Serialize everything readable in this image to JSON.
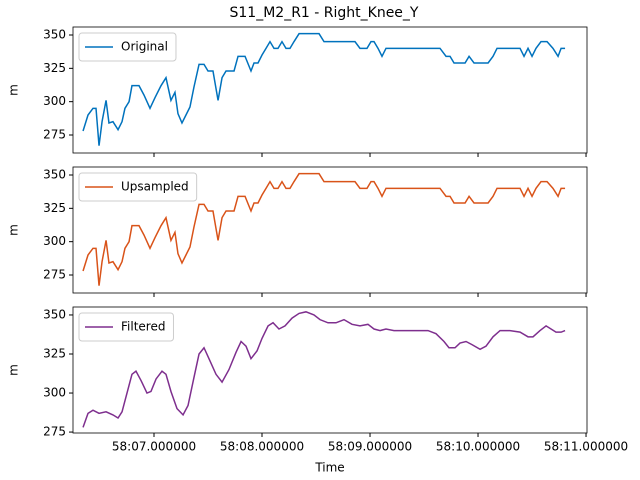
{
  "title": "S11_M2_R1 - Right_Knee_Y",
  "chart_data": [
    {
      "type": "line",
      "ylabel": "m",
      "legend": "upper left",
      "xlim": [
        6.25,
        11.009
      ],
      "ylim": [
        261.5,
        356
      ],
      "xticks": [
        7,
        8,
        9,
        10,
        11
      ],
      "yticks": [
        275,
        300,
        325,
        350
      ],
      "x": [
        6.343,
        6.389,
        6.435,
        6.463,
        6.491,
        6.519,
        6.556,
        6.583,
        6.62,
        6.667,
        6.704,
        6.731,
        6.769,
        6.796,
        6.861,
        6.907,
        6.963,
        7.009,
        7.065,
        7.111,
        7.157,
        7.194,
        7.222,
        7.259,
        7.296,
        7.333,
        7.37,
        7.417,
        7.463,
        7.5,
        7.546,
        7.593,
        7.63,
        7.667,
        7.741,
        7.778,
        7.843,
        7.898,
        7.926,
        7.963,
        8.0,
        8.037,
        8.074,
        8.111,
        8.148,
        8.185,
        8.222,
        8.259,
        8.296,
        8.343,
        8.528,
        8.574,
        8.861,
        8.907,
        8.972,
        9.009,
        9.037,
        9.074,
        9.111,
        9.148,
        9.648,
        9.704,
        9.741,
        9.778,
        9.88,
        9.917,
        9.963,
        10.093,
        10.139,
        10.176,
        10.389,
        10.426,
        10.463,
        10.5,
        10.537,
        10.583,
        10.639,
        10.694,
        10.741,
        10.769,
        10.806
      ],
      "series": [
        {
          "name": "Original",
          "color": "#0072bd",
          "values": [
            278,
            290,
            295,
            295,
            267,
            285,
            301,
            284,
            285,
            279,
            285,
            295,
            300,
            312,
            312,
            305,
            295,
            303,
            312,
            318,
            301,
            307,
            291,
            284,
            290,
            296,
            311,
            328,
            328,
            323,
            323,
            301,
            318,
            323,
            323,
            334,
            334,
            323,
            329,
            329,
            335,
            340,
            345,
            340,
            340,
            345,
            340,
            340,
            345,
            351,
            351,
            345,
            345,
            340,
            340,
            345,
            345,
            340,
            334,
            340,
            340,
            334,
            334,
            329,
            329,
            334,
            329,
            329,
            334,
            340,
            340,
            334,
            340,
            334,
            340,
            345,
            345,
            340,
            334,
            340,
            340
          ]
        }
      ]
    },
    {
      "type": "line",
      "ylabel": "m",
      "legend": "upper left",
      "xlim": [
        6.25,
        11.009
      ],
      "ylim": [
        261.5,
        356
      ],
      "xticks": [
        7,
        8,
        9,
        10,
        11
      ],
      "yticks": [
        275,
        300,
        325,
        350
      ],
      "x": [
        6.343,
        6.389,
        6.435,
        6.463,
        6.491,
        6.519,
        6.556,
        6.583,
        6.62,
        6.667,
        6.704,
        6.731,
        6.769,
        6.796,
        6.861,
        6.907,
        6.963,
        7.009,
        7.065,
        7.111,
        7.157,
        7.194,
        7.222,
        7.259,
        7.296,
        7.333,
        7.37,
        7.417,
        7.463,
        7.5,
        7.546,
        7.593,
        7.63,
        7.667,
        7.741,
        7.778,
        7.843,
        7.898,
        7.926,
        7.963,
        8.0,
        8.037,
        8.074,
        8.111,
        8.148,
        8.185,
        8.222,
        8.259,
        8.296,
        8.343,
        8.528,
        8.574,
        8.861,
        8.907,
        8.972,
        9.009,
        9.037,
        9.074,
        9.111,
        9.148,
        9.648,
        9.704,
        9.741,
        9.778,
        9.88,
        9.917,
        9.963,
        10.093,
        10.139,
        10.176,
        10.389,
        10.426,
        10.463,
        10.5,
        10.537,
        10.583,
        10.639,
        10.694,
        10.741,
        10.769,
        10.806
      ],
      "series": [
        {
          "name": "Upsampled",
          "color": "#d95319",
          "values": [
            278,
            290,
            295,
            295,
            267,
            285,
            301,
            284,
            285,
            279,
            285,
            295,
            300,
            312,
            312,
            305,
            295,
            303,
            312,
            318,
            301,
            307,
            291,
            284,
            290,
            296,
            311,
            328,
            328,
            323,
            323,
            301,
            318,
            323,
            323,
            334,
            334,
            323,
            329,
            329,
            335,
            340,
            345,
            340,
            340,
            345,
            340,
            340,
            345,
            351,
            351,
            345,
            345,
            340,
            340,
            345,
            345,
            340,
            334,
            340,
            340,
            334,
            334,
            329,
            329,
            334,
            329,
            329,
            334,
            340,
            340,
            334,
            340,
            334,
            340,
            345,
            345,
            340,
            334,
            340,
            340
          ]
        }
      ]
    },
    {
      "type": "line",
      "ylabel": "m",
      "xlabel": "Time",
      "legend": "upper left",
      "xlim": [
        6.25,
        11.009
      ],
      "ylim": [
        274.4,
        355.1
      ],
      "xticks": [
        {
          "value": 7,
          "label": "58:07.000000"
        },
        {
          "value": 8,
          "label": "58:08.000000"
        },
        {
          "value": 9,
          "label": "58:09.000000"
        },
        {
          "value": 10,
          "label": "58:10.000000"
        },
        {
          "value": 11,
          "label": "58:11.000000"
        }
      ],
      "yticks": [
        275,
        300,
        325,
        350
      ],
      "x": [
        6.343,
        6.389,
        6.435,
        6.491,
        6.556,
        6.62,
        6.667,
        6.704,
        6.75,
        6.796,
        6.833,
        6.88,
        6.935,
        6.972,
        7.019,
        7.074,
        7.111,
        7.157,
        7.213,
        7.269,
        7.315,
        7.37,
        7.417,
        7.463,
        7.509,
        7.574,
        7.63,
        7.694,
        7.759,
        7.806,
        7.852,
        7.898,
        7.954,
        8.0,
        8.056,
        8.102,
        8.157,
        8.213,
        8.278,
        8.343,
        8.407,
        8.481,
        8.537,
        8.611,
        8.685,
        8.759,
        8.833,
        8.907,
        8.981,
        9.037,
        9.093,
        9.148,
        9.222,
        9.315,
        9.389,
        9.463,
        9.537,
        9.611,
        9.685,
        9.731,
        9.787,
        9.833,
        9.889,
        9.944,
        10.019,
        10.074,
        10.139,
        10.204,
        10.296,
        10.389,
        10.463,
        10.509,
        10.574,
        10.63,
        10.676,
        10.722,
        10.769,
        10.806
      ],
      "series": [
        {
          "name": "Filtered",
          "color": "#7e2f8e",
          "values": [
            278,
            287,
            289,
            287,
            288,
            286,
            284,
            288,
            300,
            312,
            314,
            308,
            300,
            301,
            309,
            314,
            312,
            301,
            290,
            286,
            292,
            310,
            325,
            329,
            322,
            312,
            307,
            315,
            326,
            333,
            330,
            322,
            327,
            335,
            343,
            345,
            341,
            343,
            348,
            351,
            352,
            350,
            347,
            345,
            345,
            347,
            344,
            343,
            344,
            341,
            340,
            341,
            340,
            340,
            340,
            340,
            340,
            338,
            333,
            329,
            329,
            332,
            333,
            331,
            328,
            330,
            336,
            340,
            340,
            339,
            336,
            336,
            340,
            343,
            341,
            339,
            339,
            340
          ]
        }
      ]
    }
  ]
}
